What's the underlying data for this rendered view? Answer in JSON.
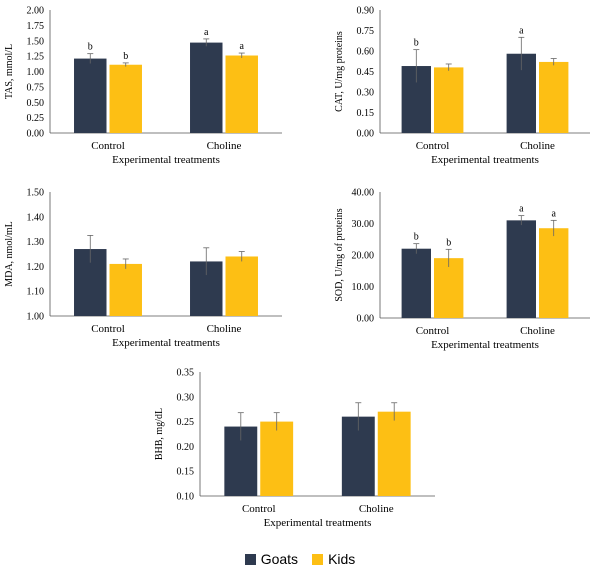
{
  "chart_data": [
    {
      "type": "bar",
      "id": "tas",
      "categories": [
        "Control",
        "Choline"
      ],
      "xlabel": "Experimental treatments",
      "ylabel": "TAS, mmol/L",
      "ylim": [
        0.0,
        2.0
      ],
      "yticks": [
        "0.00",
        "0.25",
        "0.50",
        "0.75",
        "1.00",
        "1.25",
        "1.50",
        "1.75",
        "2.00"
      ],
      "series": [
        {
          "name": "Goats",
          "values": [
            1.21,
            1.47
          ],
          "errors": [
            0.08,
            0.06
          ],
          "letters": [
            "b",
            "a"
          ]
        },
        {
          "name": "Kids",
          "values": [
            1.11,
            1.26
          ],
          "errors": [
            0.03,
            0.04
          ],
          "letters": [
            "b",
            "a"
          ]
        }
      ]
    },
    {
      "type": "bar",
      "id": "cat",
      "categories": [
        "Control",
        "Choline"
      ],
      "xlabel": "Experimental treatments",
      "ylabel": "CAT, U/mg proteins",
      "ylim": [
        0.0,
        0.9
      ],
      "yticks": [
        "0.00",
        "0.15",
        "0.30",
        "0.45",
        "0.60",
        "0.75",
        "0.90"
      ],
      "series": [
        {
          "name": "Goats",
          "values": [
            0.49,
            0.58
          ],
          "errors": [
            0.12,
            0.12
          ],
          "letters": [
            "b",
            "a"
          ]
        },
        {
          "name": "Kids",
          "values": [
            0.48,
            0.52
          ],
          "errors": [
            0.025,
            0.025
          ],
          "letters": [
            "",
            ""
          ]
        }
      ]
    },
    {
      "type": "bar",
      "id": "mda",
      "categories": [
        "Control",
        "Choline"
      ],
      "xlabel": "Experimental treatments",
      "ylabel": "MDA, nmol/mL",
      "ylim": [
        1.0,
        1.5
      ],
      "yticks": [
        "1.00",
        "1.10",
        "1.20",
        "1.30",
        "1.40",
        "1.50"
      ],
      "series": [
        {
          "name": "Goats",
          "values": [
            1.27,
            1.22
          ],
          "errors": [
            0.055,
            0.055
          ],
          "letters": [
            "",
            ""
          ]
        },
        {
          "name": "Kids",
          "values": [
            1.21,
            1.24
          ],
          "errors": [
            0.02,
            0.02
          ],
          "letters": [
            "",
            ""
          ]
        }
      ]
    },
    {
      "type": "bar",
      "id": "sod",
      "categories": [
        "Control",
        "Choline"
      ],
      "xlabel": "Experimental treatments",
      "ylabel": "SOD, U/mg of proteins",
      "ylim": [
        0.0,
        40.0
      ],
      "yticks": [
        "0.00",
        "10.00",
        "20.00",
        "30.00",
        "40.00"
      ],
      "series": [
        {
          "name": "Goats",
          "values": [
            22.0,
            31.0
          ],
          "errors": [
            1.6,
            1.5
          ],
          "letters": [
            "b",
            "a"
          ]
        },
        {
          "name": "Kids",
          "values": [
            19.0,
            28.5
          ],
          "errors": [
            2.8,
            2.5
          ],
          "letters": [
            "b",
            "a"
          ]
        }
      ]
    },
    {
      "type": "bar",
      "id": "bhb",
      "categories": [
        "Control",
        "Choline"
      ],
      "xlabel": "Experimental treatments",
      "ylabel": "BHB, mg/dL",
      "ylim": [
        0.1,
        0.35
      ],
      "yticks": [
        "0.10",
        "0.15",
        "0.20",
        "0.25",
        "0.30",
        "0.35"
      ],
      "series": [
        {
          "name": "Goats",
          "values": [
            0.24,
            0.26
          ],
          "errors": [
            0.028,
            0.028
          ],
          "letters": [
            "",
            ""
          ]
        },
        {
          "name": "Kids",
          "values": [
            0.25,
            0.27
          ],
          "errors": [
            0.018,
            0.018
          ],
          "letters": [
            "",
            ""
          ]
        }
      ]
    }
  ],
  "legend": {
    "items": [
      {
        "label": "Goats",
        "color": "#2e3a4f"
      },
      {
        "label": "Kids",
        "color": "#fdbf14"
      }
    ]
  }
}
